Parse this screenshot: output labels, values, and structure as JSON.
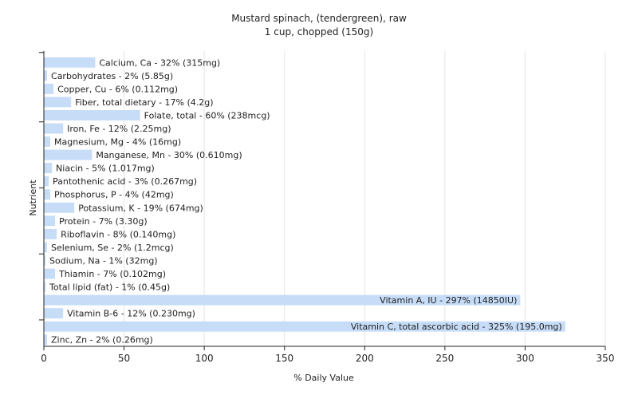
{
  "chart_data": {
    "type": "bar",
    "orientation": "horizontal",
    "title": "Mustard spinach, (tendergreen), raw",
    "subtitle": "1 cup, chopped (150g)",
    "xlabel": "% Daily Value",
    "ylabel": "Nutrient",
    "xlim": [
      0,
      350
    ],
    "xticks": [
      0,
      50,
      100,
      150,
      200,
      250,
      300,
      350
    ],
    "grid": true,
    "bar_color": "#c6dcf7",
    "categories": [
      "Calcium, Ca",
      "Carbohydrates",
      "Copper, Cu",
      "Fiber, total dietary",
      "Folate, total",
      "Iron, Fe",
      "Magnesium, Mg",
      "Manganese, Mn",
      "Niacin",
      "Pantothenic acid",
      "Phosphorus, P",
      "Potassium, K",
      "Protein",
      "Riboflavin",
      "Selenium, Se",
      "Sodium, Na",
      "Thiamin",
      "Total lipid (fat)",
      "Vitamin A, IU",
      "Vitamin B-6",
      "Vitamin C, total ascorbic acid",
      "Zinc, Zn"
    ],
    "values": [
      32,
      2,
      6,
      17,
      60,
      12,
      4,
      30,
      5,
      3,
      4,
      19,
      7,
      8,
      2,
      1,
      7,
      1,
      297,
      12,
      325,
      2
    ],
    "labels": [
      "Calcium, Ca - 32% (315mg)",
      "Carbohydrates - 2% (5.85g)",
      "Copper, Cu - 6% (0.112mg)",
      "Fiber, total dietary - 17% (4.2g)",
      "Folate, total - 60% (238mcg)",
      "Iron, Fe - 12% (2.25mg)",
      "Magnesium, Mg - 4% (16mg)",
      "Manganese, Mn - 30% (0.610mg)",
      "Niacin - 5% (1.017mg)",
      "Pantothenic acid - 3% (0.267mg)",
      "Phosphorus, P - 4% (42mg)",
      "Potassium, K - 19% (674mg)",
      "Protein - 7% (3.30g)",
      "Riboflavin - 8% (0.140mg)",
      "Selenium, Se - 2% (1.2mcg)",
      "Sodium, Na - 1% (32mg)",
      "Thiamin - 7% (0.102mg)",
      "Total lipid (fat) - 1% (0.45g)",
      "Vitamin A, IU - 297% (14850IU)",
      "Vitamin B-6 - 12% (0.230mg)",
      "Vitamin C, total ascorbic acid - 325% (195.0mg)",
      "Zinc, Zn - 2% (0.26mg)"
    ]
  }
}
